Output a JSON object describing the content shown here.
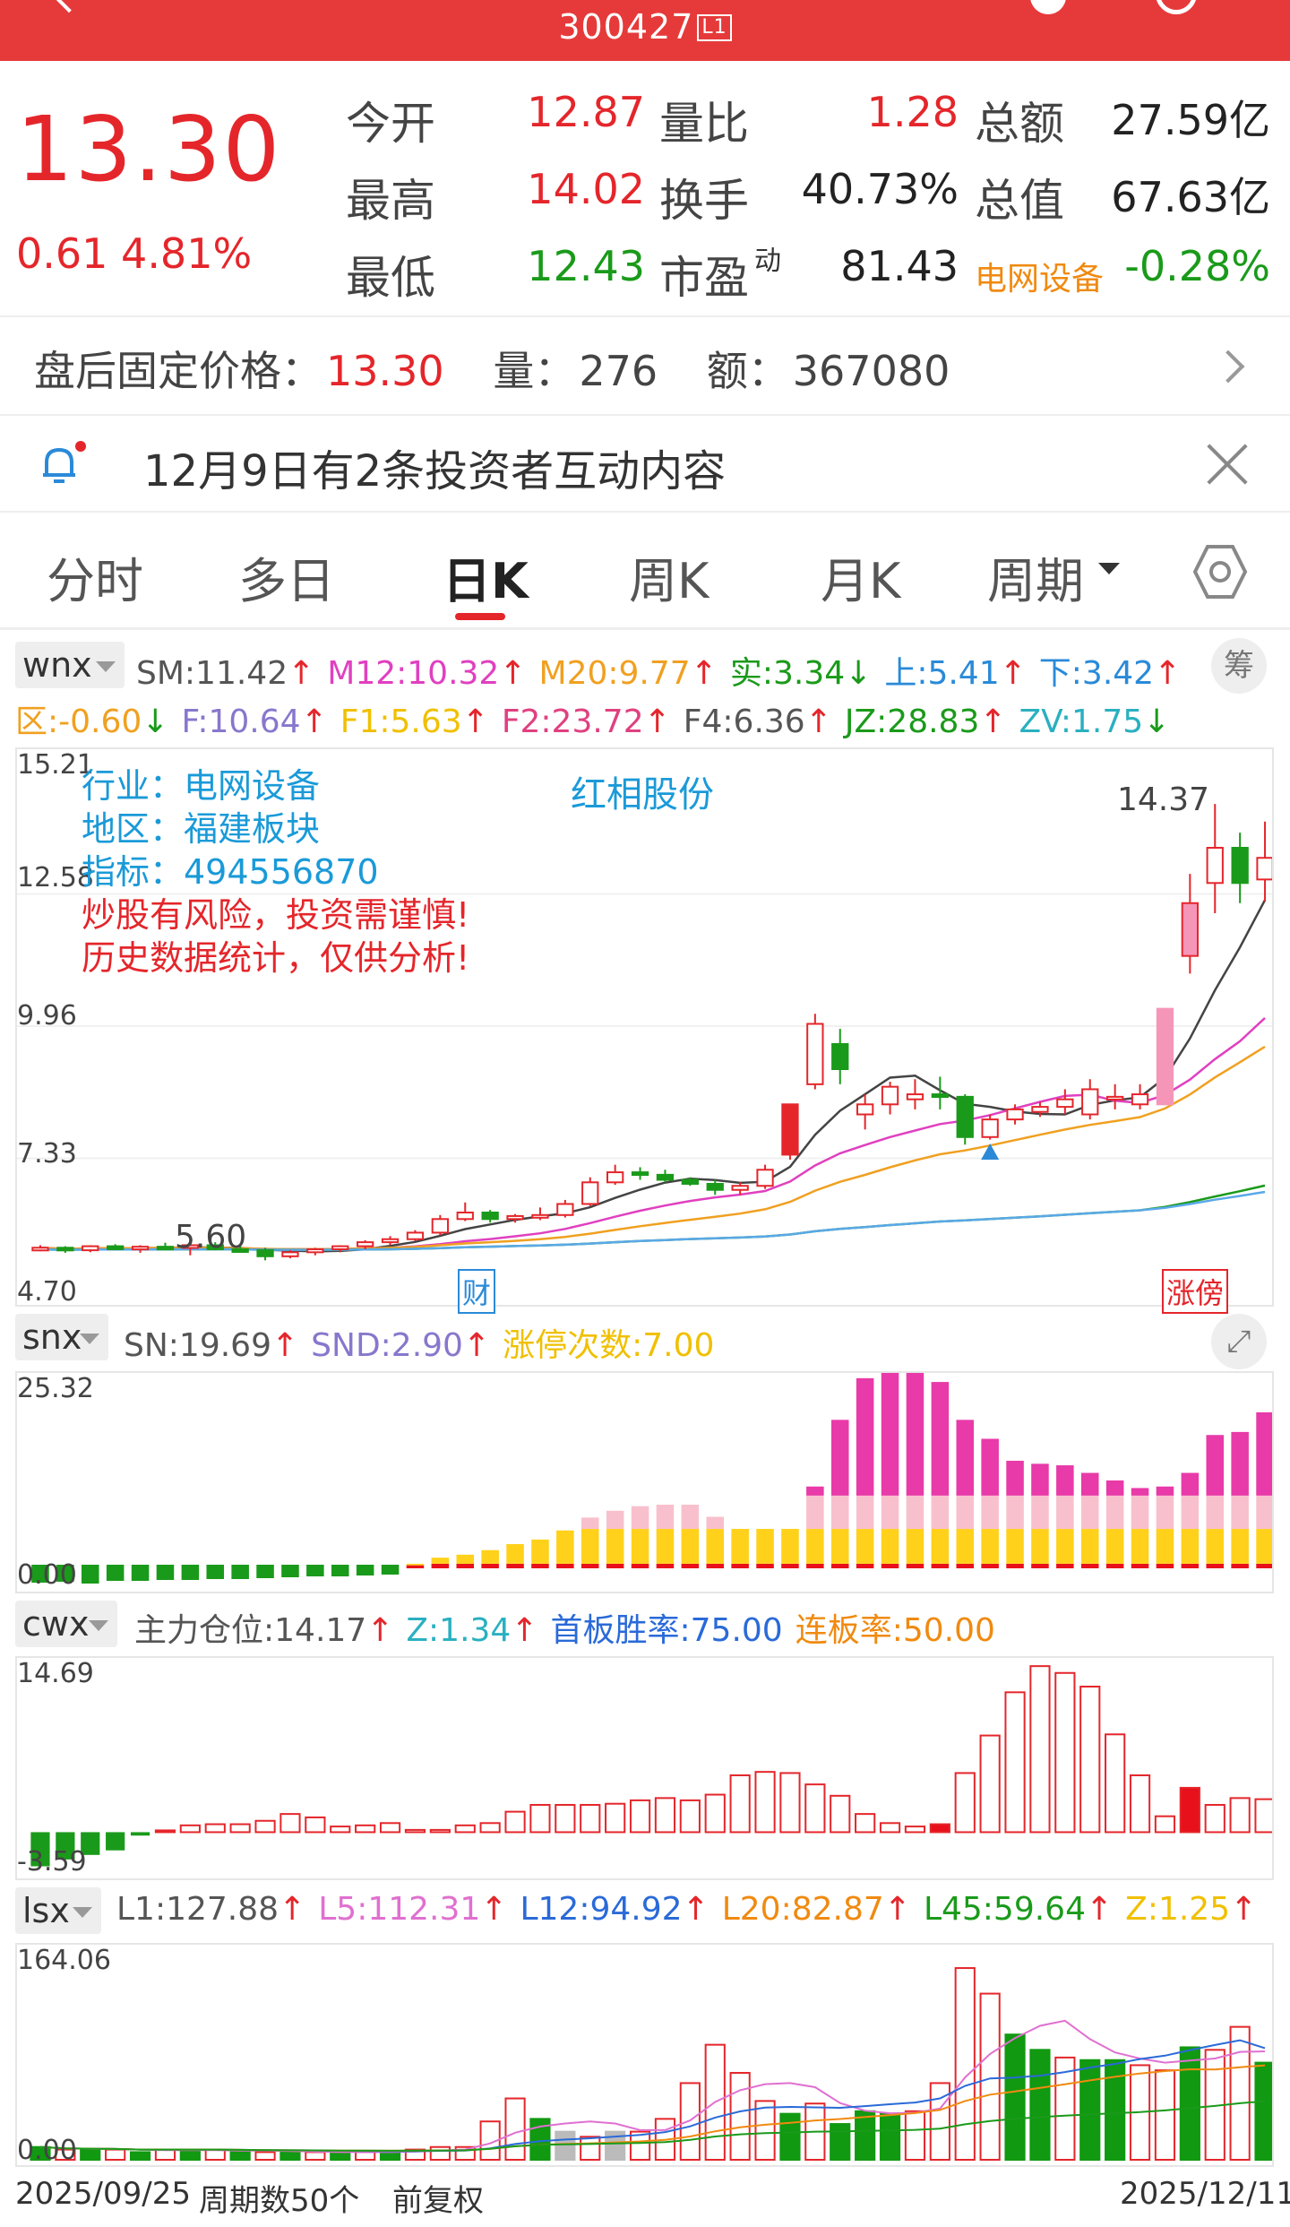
{
  "topbar": {
    "code": "300427",
    "level_tag": "L1"
  },
  "quote": {
    "price": "13.30",
    "change": "0.61",
    "change_pct": "4.81%",
    "rows": [
      {
        "l1": "今开",
        "v1": "12.87",
        "c1": "red",
        "l2": "量比",
        "v2": "1.28",
        "c2": "red",
        "l3": "总额",
        "v3": "27.59亿"
      },
      {
        "l1": "最高",
        "v1": "14.02",
        "c1": "red",
        "l2": "换手",
        "v2": "40.73%",
        "c2": "dark",
        "l3": "总值",
        "v3": "67.63亿"
      },
      {
        "l1": "最低",
        "v1": "12.43",
        "c1": "green",
        "l2": "市盈",
        "l2_sup": "动",
        "v2": "81.43",
        "c2": "dark",
        "l3": "电网设备",
        "v3": "-0.28%"
      }
    ]
  },
  "afterhours": {
    "label": "盘后固定价格：",
    "price": "13.30",
    "vol_label": "量：",
    "vol": "276",
    "amt_label": "额：",
    "amt": "367080"
  },
  "notice": {
    "text": "12月9日有2条投资者互动内容"
  },
  "tabs": [
    "分时",
    "多日",
    "日K",
    "周K",
    "月K",
    "周期"
  ],
  "active_tab": "日K",
  "wnx": {
    "button": "wnx",
    "chip_right": "筹",
    "row1": [
      {
        "t": "SM:11.42",
        "color": "#555",
        "arrow": "↑",
        "ac": "#e4262b"
      },
      {
        "t": "M12:10.32",
        "color": "#e040c0",
        "arrow": "↑",
        "ac": "#e4262b"
      },
      {
        "t": "M20:9.77",
        "color": "#f0a020",
        "arrow": "↑",
        "ac": "#e4262b"
      },
      {
        "t": "实:3.34",
        "color": "#1a9a1a",
        "arrow": "↓",
        "ac": "#1a9a1a"
      },
      {
        "t": "上:5.41",
        "color": "#2a8ad8",
        "arrow": "↑",
        "ac": "#e4262b"
      },
      {
        "t": "下:3.42",
        "color": "#2a8ad8",
        "arrow": "↑",
        "ac": "#e4262b"
      }
    ],
    "row2": [
      {
        "t": "区:-0.60",
        "color": "#f0a020",
        "arrow": "↓",
        "ac": "#1a9a1a"
      },
      {
        "t": "F:10.64",
        "color": "#8877cc",
        "arrow": "↑",
        "ac": "#e4262b"
      },
      {
        "t": "F1:5.63",
        "color": "#f0c000",
        "arrow": "↑",
        "ac": "#e4262b"
      },
      {
        "t": "F2:23.72",
        "color": "#e04080",
        "arrow": "↑",
        "ac": "#e4262b"
      },
      {
        "t": "F4:6.36",
        "color": "#555",
        "arrow": "↑",
        "ac": "#e4262b"
      },
      {
        "t": "JZ:28.83",
        "color": "#1a9a1a",
        "arrow": "↑",
        "ac": "#e4262b"
      },
      {
        "t": "ZV:1.75",
        "color": "#2ab0c0",
        "arrow": "↓",
        "ac": "#1a9a1a"
      }
    ],
    "yticks": [
      "15.21",
      "12.58",
      "9.96",
      "7.33",
      "4.70"
    ],
    "info": {
      "industry": "行业：电网设备",
      "region": "地区：福建板块",
      "indicator": "指标：494556870",
      "warn1": "炒股有风险，投资需谨慎!",
      "warn2": "历史数据统计，仅供分析!"
    },
    "name": "红相股份",
    "high_label": "14.37",
    "low_label": "5.60",
    "tag_cai": "财",
    "tag_zhangbang": "涨傍"
  },
  "snx": {
    "button": "snx",
    "items": [
      {
        "t": "SN:19.69",
        "color": "#555",
        "arrow": "↑",
        "ac": "#e4262b"
      },
      {
        "t": "SND:2.90",
        "color": "#8877cc",
        "arrow": "↑",
        "ac": "#e4262b"
      },
      {
        "t": "涨停次数:7.00",
        "color": "#f0c000",
        "arrow": "",
        "ac": ""
      }
    ],
    "ytop": "25.32",
    "ybot": "0.00"
  },
  "cwx": {
    "button": "cwx",
    "items": [
      {
        "t": "主力仓位:14.17",
        "color": "#555",
        "arrow": "↑",
        "ac": "#e4262b"
      },
      {
        "t": "Z:1.34",
        "color": "#2ab0c0",
        "arrow": "↑",
        "ac": "#e4262b"
      },
      {
        "t": "首板胜率:75.00",
        "color": "#2a6ad8",
        "arrow": "",
        "ac": ""
      },
      {
        "t": "连板率:50.00",
        "color": "#f08a10",
        "arrow": "",
        "ac": ""
      }
    ],
    "ytop": "14.69",
    "ybot": "-3.59"
  },
  "lsx": {
    "button": "lsx",
    "items": [
      {
        "t": "L1:127.88",
        "color": "#555",
        "arrow": "↑",
        "ac": "#e4262b"
      },
      {
        "t": "L5:112.31",
        "color": "#e070d0",
        "arrow": "↑",
        "ac": "#e4262b"
      },
      {
        "t": "L12:94.92",
        "color": "#2a6ad8",
        "arrow": "↑",
        "ac": "#e4262b"
      },
      {
        "t": "L20:82.87",
        "color": "#f08a10",
        "arrow": "↑",
        "ac": "#e4262b"
      },
      {
        "t": "L45:59.64",
        "color": "#1a9a1a",
        "arrow": "↑",
        "ac": "#e4262b"
      },
      {
        "t": "Z:1.25",
        "color": "#f0c000",
        "arrow": "↑",
        "ac": "#e4262b"
      }
    ],
    "ytop": "164.06",
    "ybot": "0.00"
  },
  "footer": {
    "start": "2025/09/25",
    "period": "周期数50个",
    "adj": "前复权",
    "end": "2025/12/11"
  },
  "candles": [
    [
      5.52,
      5.6,
      5.48,
      5.55
    ],
    [
      5.55,
      5.58,
      5.45,
      5.5
    ],
    [
      5.5,
      5.6,
      5.46,
      5.58
    ],
    [
      5.58,
      5.62,
      5.5,
      5.52
    ],
    [
      5.52,
      5.6,
      5.45,
      5.57
    ],
    [
      5.57,
      5.65,
      5.52,
      5.55
    ],
    [
      5.55,
      5.7,
      5.4,
      5.6
    ],
    [
      5.6,
      5.66,
      5.5,
      5.52
    ],
    [
      5.52,
      5.6,
      5.45,
      5.5
    ],
    [
      5.5,
      5.55,
      5.3,
      5.38
    ],
    [
      5.38,
      5.5,
      5.34,
      5.46
    ],
    [
      5.46,
      5.55,
      5.4,
      5.52
    ],
    [
      5.52,
      5.6,
      5.46,
      5.58
    ],
    [
      5.58,
      5.7,
      5.52,
      5.66
    ],
    [
      5.66,
      5.78,
      5.6,
      5.72
    ],
    [
      5.72,
      5.9,
      5.68,
      5.85
    ],
    [
      5.85,
      6.2,
      5.8,
      6.12
    ],
    [
      6.12,
      6.45,
      6.08,
      6.25
    ],
    [
      6.25,
      6.3,
      6.05,
      6.12
    ],
    [
      6.12,
      6.22,
      6.05,
      6.18
    ],
    [
      6.18,
      6.35,
      6.1,
      6.2
    ],
    [
      6.2,
      6.5,
      6.15,
      6.42
    ],
    [
      6.42,
      6.95,
      6.38,
      6.85
    ],
    [
      6.85,
      7.2,
      6.8,
      7.05
    ],
    [
      7.05,
      7.15,
      6.9,
      7.0
    ],
    [
      7.0,
      7.1,
      6.85,
      6.9
    ],
    [
      6.9,
      6.95,
      6.78,
      6.82
    ],
    [
      6.82,
      6.9,
      6.6,
      6.7
    ],
    [
      6.7,
      6.85,
      6.6,
      6.78
    ],
    [
      6.78,
      7.2,
      6.72,
      7.1
    ],
    [
      7.4,
      8.4,
      7.3,
      8.4
    ],
    [
      8.8,
      10.2,
      8.7,
      10.0
    ],
    [
      9.6,
      9.9,
      8.8,
      9.1
    ],
    [
      8.2,
      8.6,
      7.9,
      8.4
    ],
    [
      8.4,
      8.85,
      8.2,
      8.75
    ],
    [
      8.5,
      8.9,
      8.3,
      8.6
    ],
    [
      8.6,
      8.95,
      8.3,
      8.55
    ],
    [
      8.55,
      8.6,
      7.6,
      7.75
    ],
    [
      7.75,
      8.2,
      7.7,
      8.1
    ],
    [
      8.1,
      8.4,
      8.0,
      8.3
    ],
    [
      8.25,
      8.45,
      8.15,
      8.35
    ],
    [
      8.35,
      8.7,
      8.2,
      8.5
    ],
    [
      8.2,
      8.9,
      8.1,
      8.7
    ],
    [
      8.5,
      8.8,
      8.3,
      8.55
    ],
    [
      8.4,
      8.8,
      8.3,
      8.6
    ],
    [
      8.4,
      10.3,
      8.4,
      10.3
    ],
    [
      11.35,
      12.98,
      11.0,
      12.4
    ],
    [
      12.8,
      14.37,
      12.2,
      13.5
    ],
    [
      13.5,
      13.8,
      12.4,
      12.8
    ],
    [
      12.87,
      14.02,
      12.43,
      13.3
    ]
  ],
  "snx_bars": [
    [
      0,
      0,
      0,
      0,
      -1.2
    ],
    [
      0,
      0,
      0,
      0,
      -1.1
    ],
    [
      0,
      0,
      0,
      0,
      -1.3
    ],
    [
      0,
      0,
      0,
      0,
      -1.0
    ],
    [
      0,
      0,
      0,
      0,
      -1.0
    ],
    [
      0,
      0,
      0,
      0,
      -0.9
    ],
    [
      0,
      0,
      0,
      0,
      -0.9
    ],
    [
      0,
      0,
      0,
      0,
      -0.8
    ],
    [
      0,
      0,
      0,
      0,
      -0.8
    ],
    [
      0,
      0,
      0,
      0,
      -0.7
    ],
    [
      0,
      0,
      0,
      0,
      -0.6
    ],
    [
      0,
      0,
      0,
      0,
      -0.5
    ],
    [
      0,
      0,
      0,
      0,
      -0.5
    ],
    [
      0,
      0,
      0,
      0,
      -0.4
    ],
    [
      0,
      0,
      0,
      0,
      -0.3
    ],
    [
      0.4,
      0.2,
      0,
      0,
      0
    ],
    [
      0.6,
      0.8,
      0,
      0,
      0
    ],
    [
      0.6,
      1.2,
      0,
      0,
      0
    ],
    [
      0.6,
      1.8,
      0,
      0,
      0
    ],
    [
      0.6,
      2.6,
      0,
      0,
      0
    ],
    [
      0.6,
      3.2,
      0,
      0,
      0
    ],
    [
      0.6,
      4.4,
      0,
      0,
      0
    ],
    [
      0.6,
      4.6,
      1.5,
      0,
      0
    ],
    [
      0.6,
      4.6,
      2.4,
      0,
      0
    ],
    [
      0.6,
      4.6,
      3.0,
      0,
      0
    ],
    [
      0.6,
      4.6,
      3.2,
      0,
      0
    ],
    [
      0.6,
      4.6,
      3.2,
      0,
      0
    ],
    [
      0.6,
      4.6,
      1.6,
      0,
      0
    ],
    [
      0.6,
      4.6,
      0,
      0,
      0
    ],
    [
      0.6,
      4.6,
      0,
      0,
      0
    ],
    [
      0.6,
      4.6,
      0,
      0,
      0
    ],
    [
      0.6,
      4.6,
      4.4,
      1.2,
      0
    ],
    [
      0.6,
      4.6,
      4.4,
      10.0,
      0
    ],
    [
      0.6,
      4.6,
      4.4,
      15.5,
      0
    ],
    [
      0.6,
      4.6,
      4.4,
      18.0,
      0
    ],
    [
      0.6,
      4.6,
      4.4,
      19.0,
      0
    ],
    [
      0.6,
      4.6,
      4.4,
      15.0,
      0
    ],
    [
      0.6,
      4.6,
      4.4,
      10.0,
      0
    ],
    [
      0.6,
      4.6,
      4.4,
      7.5,
      0
    ],
    [
      0.6,
      4.6,
      4.4,
      4.6,
      0
    ],
    [
      0.6,
      4.6,
      4.4,
      4.2,
      0
    ],
    [
      0.6,
      4.6,
      4.4,
      4.0,
      0
    ],
    [
      0.6,
      4.6,
      4.4,
      3.0,
      0
    ],
    [
      0.6,
      4.6,
      4.4,
      2.0,
      0
    ],
    [
      0.6,
      4.6,
      4.4,
      1.0,
      0
    ],
    [
      0.6,
      4.6,
      4.4,
      1.2,
      0
    ],
    [
      0.6,
      4.6,
      4.4,
      3.0,
      0
    ],
    [
      0.6,
      4.6,
      4.4,
      8.0,
      0
    ],
    [
      0.6,
      4.6,
      4.4,
      8.4,
      0
    ],
    [
      0.6,
      4.6,
      4.4,
      11.0,
      0
    ]
  ],
  "cwx_bars": [
    -3.0,
    -2.4,
    -2.0,
    -1.6,
    -0.3,
    0.0,
    0.6,
    0.7,
    0.7,
    1.0,
    1.6,
    1.3,
    0.5,
    0.6,
    0.8,
    0.2,
    0.2,
    0.6,
    0.8,
    1.8,
    2.4,
    2.4,
    2.4,
    2.5,
    2.8,
    3.0,
    2.8,
    3.3,
    5.0,
    5.3,
    5.2,
    4.2,
    3.2,
    1.6,
    0.8,
    0.5,
    0.7,
    5.2,
    8.5,
    12.3,
    14.6,
    14.0,
    12.8,
    8.6,
    5.0,
    1.4,
    3.9,
    2.4,
    3.0,
    2.9
  ],
  "cwx_fill": [
    -3.0,
    -2.4,
    -2.0,
    -1.6,
    -0.3,
    0,
    0,
    0,
    0,
    0,
    0,
    0,
    0,
    0,
    0,
    0,
    0,
    0,
    0,
    0,
    0,
    0,
    0,
    0,
    0,
    0,
    0,
    0,
    0,
    0,
    0,
    0,
    0,
    0,
    0,
    0,
    0.7,
    0,
    0,
    0,
    0,
    0,
    0,
    0,
    0,
    0,
    3.9,
    0,
    0,
    0
  ],
  "lsx_bars": [
    [
      10,
      "g"
    ],
    [
      8,
      "r"
    ],
    [
      8,
      "g"
    ],
    [
      8,
      "r"
    ],
    [
      6,
      "g"
    ],
    [
      8,
      "r"
    ],
    [
      8,
      "g"
    ],
    [
      8,
      "r"
    ],
    [
      6,
      "g"
    ],
    [
      6,
      "r"
    ],
    [
      6,
      "g"
    ],
    [
      6,
      "r"
    ],
    [
      6,
      "g"
    ],
    [
      6,
      "r"
    ],
    [
      6,
      "g"
    ],
    [
      8,
      "r"
    ],
    [
      10,
      "r"
    ],
    [
      10,
      "r"
    ],
    [
      30,
      "r"
    ],
    [
      48,
      "r"
    ],
    [
      32,
      "g"
    ],
    [
      22,
      "gray"
    ],
    [
      18,
      "r"
    ],
    [
      22,
      "gray"
    ],
    [
      22,
      "r"
    ],
    [
      32,
      "r"
    ],
    [
      60,
      "r"
    ],
    [
      90,
      "r"
    ],
    [
      68,
      "r"
    ],
    [
      46,
      "r"
    ],
    [
      36,
      "g"
    ],
    [
      44,
      "r"
    ],
    [
      28,
      "g"
    ],
    [
      38,
      "g"
    ],
    [
      36,
      "g"
    ],
    [
      38,
      "r"
    ],
    [
      60,
      "r"
    ],
    [
      150,
      "r"
    ],
    [
      130,
      "r"
    ],
    [
      98,
      "g"
    ],
    [
      86,
      "g"
    ],
    [
      80,
      "r"
    ],
    [
      78,
      "g"
    ],
    [
      78,
      "g"
    ],
    [
      74,
      "r"
    ],
    [
      70,
      "r"
    ],
    [
      88,
      "g"
    ],
    [
      86,
      "r"
    ],
    [
      104,
      "r"
    ],
    [
      76,
      "g"
    ]
  ]
}
